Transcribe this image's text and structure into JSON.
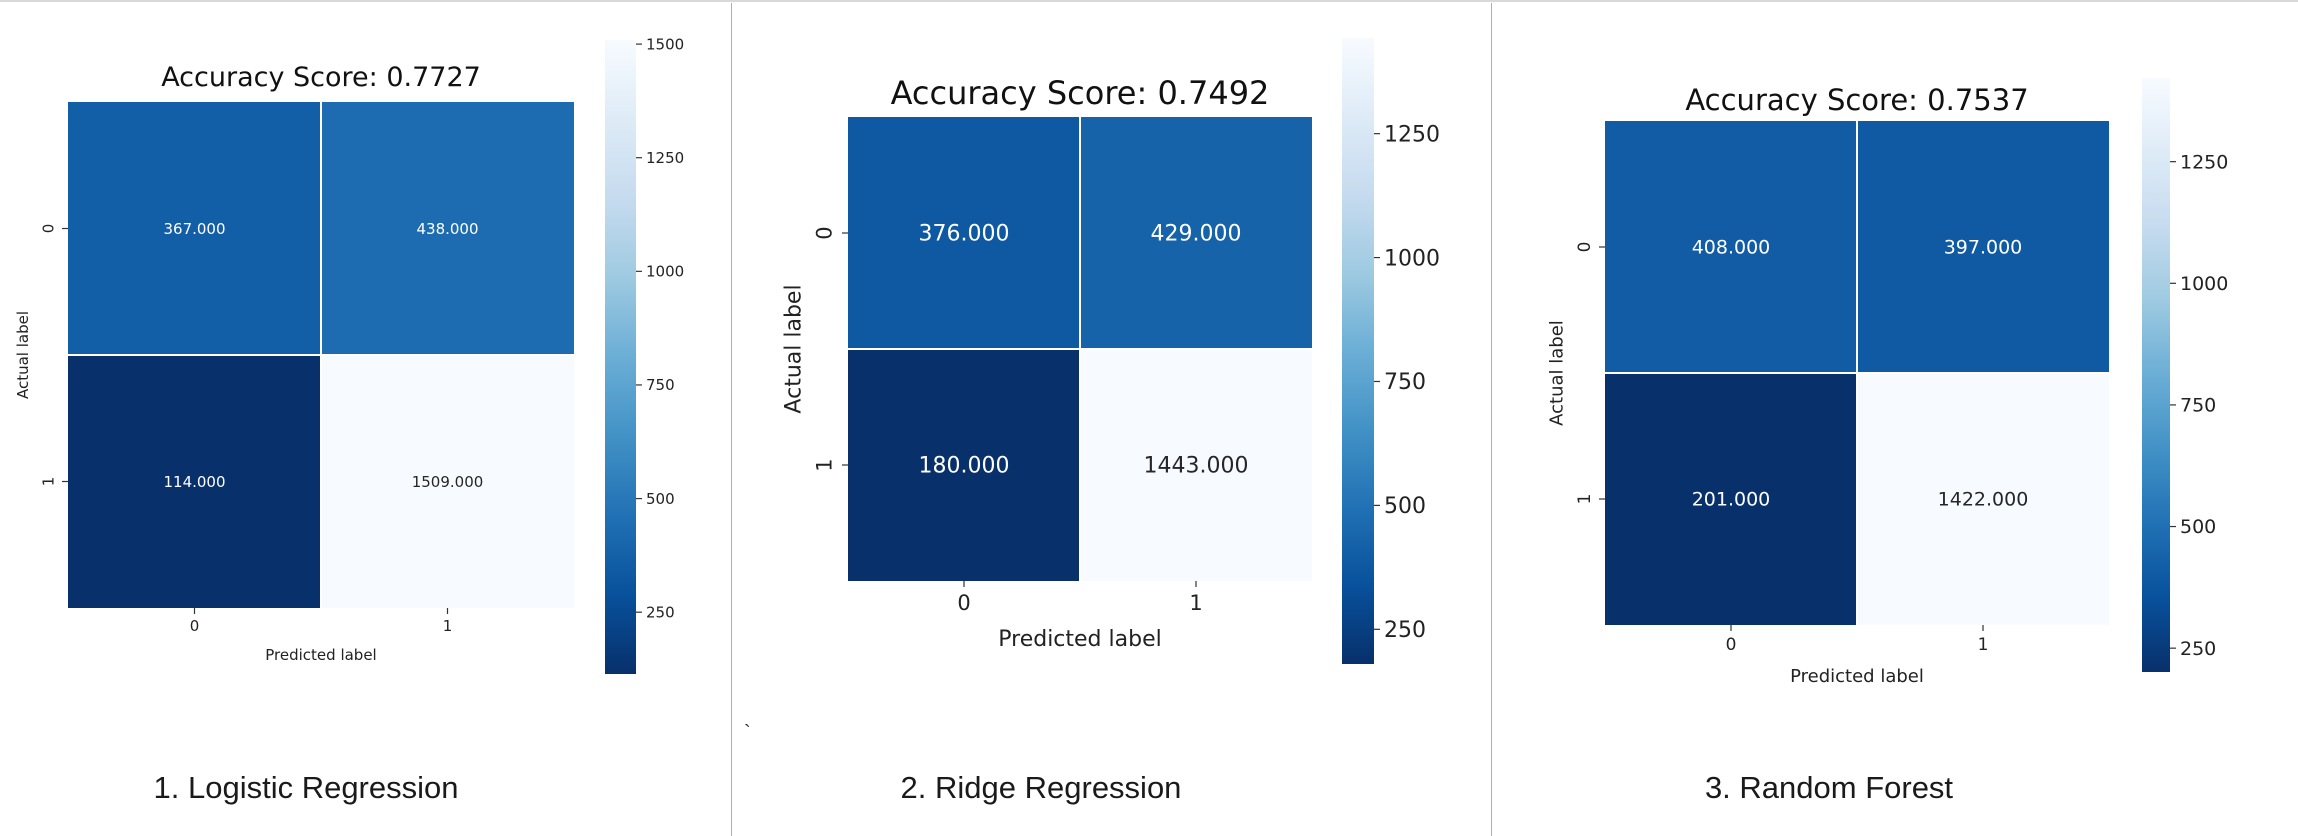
{
  "colors": {
    "low": "#08306b",
    "mid": "#4292c6",
    "high": "#f7fbff",
    "divider": "#8fb3e8"
  },
  "stray_mark": "`",
  "panels": [
    {
      "caption": "1. Logistic Regression",
      "chart_data": {
        "type": "heatmap",
        "title": "Accuracy Score: 0.7727",
        "xlabel": "Predicted label",
        "ylabel": "Actual label",
        "x_categories": [
          "0",
          "1"
        ],
        "y_categories": [
          "0",
          "1"
        ],
        "values": [
          [
            367,
            438
          ],
          [
            114,
            1509
          ]
        ],
        "cell_labels": [
          [
            "367.000",
            "438.000"
          ],
          [
            "114.000",
            "1509.000"
          ]
        ],
        "colorbar": {
          "min": 114,
          "max": 1509,
          "ticks": [
            250,
            500,
            750,
            1000,
            1250,
            1500
          ]
        },
        "colormap": "Blues_r"
      }
    },
    {
      "caption": "2. Ridge Regression",
      "chart_data": {
        "type": "heatmap",
        "title": "Accuracy Score: 0.7492",
        "xlabel": "Predicted label",
        "ylabel": "Actual label",
        "x_categories": [
          "0",
          "1"
        ],
        "y_categories": [
          "0",
          "1"
        ],
        "values": [
          [
            376,
            429
          ],
          [
            180,
            1443
          ]
        ],
        "cell_labels": [
          [
            "376.000",
            "429.000"
          ],
          [
            "180.000",
            "1443.000"
          ]
        ],
        "colorbar": {
          "min": 180,
          "max": 1443,
          "ticks": [
            250,
            500,
            750,
            1000,
            1250
          ]
        },
        "colormap": "Blues_r"
      }
    },
    {
      "caption": "3. Random Forest",
      "chart_data": {
        "type": "heatmap",
        "title": "Accuracy Score: 0.7537",
        "xlabel": "Predicted label",
        "ylabel": "Actual label",
        "x_categories": [
          "0",
          "1"
        ],
        "y_categories": [
          "0",
          "1"
        ],
        "values": [
          [
            408,
            397
          ],
          [
            201,
            1422
          ]
        ],
        "cell_labels": [
          [
            "408.000",
            "397.000"
          ],
          [
            "201.000",
            "1422.000"
          ]
        ],
        "colorbar": {
          "min": 201,
          "max": 1422,
          "ticks": [
            250,
            500,
            750,
            1000,
            1250
          ]
        },
        "colormap": "Blues_r"
      }
    }
  ]
}
